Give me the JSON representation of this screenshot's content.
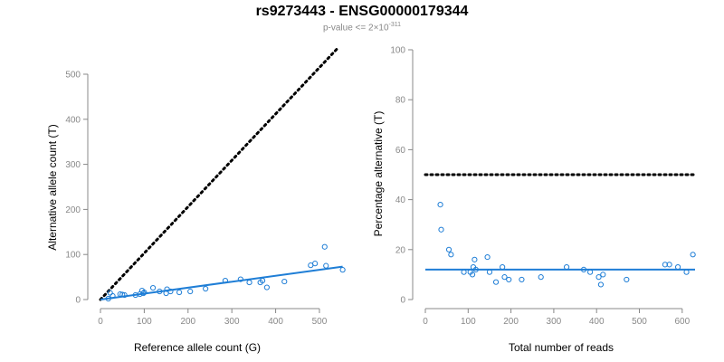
{
  "figure": {
    "title": "rs9273443 - ENSG00000179344",
    "subtitle_prefix": "p-value <= 2×10",
    "subtitle_exponent": "-311"
  },
  "colors": {
    "points": "#1f7ed6",
    "fit": "#1f7ed6",
    "reference": "#000000",
    "axis": "#888888"
  },
  "chart_data": [
    {
      "type": "scatter",
      "xlabel": "Reference allele count (G)",
      "ylabel": "Alternative allele count (T)",
      "xlim": [
        0,
        560
      ],
      "ylim": [
        0,
        500
      ],
      "xticks": [
        0,
        100,
        200,
        300,
        400,
        500
      ],
      "yticks": [
        0,
        100,
        200,
        300,
        400,
        500
      ],
      "points": [
        [
          18,
          2
        ],
        [
          22,
          15
        ],
        [
          28,
          8
        ],
        [
          45,
          12
        ],
        [
          50,
          11
        ],
        [
          55,
          10
        ],
        [
          80,
          10
        ],
        [
          90,
          12
        ],
        [
          95,
          20
        ],
        [
          98,
          14
        ],
        [
          100,
          16
        ],
        [
          120,
          26
        ],
        [
          135,
          18
        ],
        [
          150,
          14
        ],
        [
          152,
          23
        ],
        [
          160,
          18
        ],
        [
          180,
          16
        ],
        [
          205,
          18
        ],
        [
          240,
          24
        ],
        [
          285,
          42
        ],
        [
          320,
          45
        ],
        [
          340,
          38
        ],
        [
          365,
          38
        ],
        [
          370,
          42
        ],
        [
          380,
          27
        ],
        [
          420,
          40
        ],
        [
          480,
          76
        ],
        [
          490,
          80
        ],
        [
          512,
          117
        ],
        [
          515,
          75
        ],
        [
          553,
          66
        ]
      ],
      "reference_line": {
        "style": "dotted",
        "from": [
          0,
          0
        ],
        "to": [
          540,
          556
        ]
      },
      "fit_line": {
        "style": "solid",
        "from": [
          0,
          0
        ],
        "to": [
          553,
          73
        ]
      }
    },
    {
      "type": "scatter",
      "xlabel": "Total number of reads",
      "ylabel": "Percentage alternative (T)",
      "xlim": [
        0,
        630
      ],
      "ylim": [
        0,
        100
      ],
      "xticks": [
        0,
        100,
        200,
        300,
        400,
        500,
        600
      ],
      "yticks": [
        0,
        20,
        40,
        60,
        80,
        100
      ],
      "points": [
        [
          35,
          38
        ],
        [
          37,
          28
        ],
        [
          55,
          20
        ],
        [
          60,
          18
        ],
        [
          90,
          11
        ],
        [
          105,
          11
        ],
        [
          110,
          10
        ],
        [
          112,
          13
        ],
        [
          115,
          16
        ],
        [
          118,
          12
        ],
        [
          145,
          17
        ],
        [
          150,
          11
        ],
        [
          165,
          7
        ],
        [
          180,
          13
        ],
        [
          185,
          9
        ],
        [
          195,
          8
        ],
        [
          225,
          8
        ],
        [
          270,
          9
        ],
        [
          330,
          13
        ],
        [
          370,
          12
        ],
        [
          385,
          11
        ],
        [
          405,
          9
        ],
        [
          410,
          6
        ],
        [
          415,
          10
        ],
        [
          470,
          8
        ],
        [
          560,
          14
        ],
        [
          570,
          14
        ],
        [
          590,
          13
        ],
        [
          610,
          11
        ],
        [
          625,
          18
        ]
      ],
      "reference_line": {
        "style": "dotted",
        "y": 50,
        "xrange": [
          0,
          630
        ]
      },
      "fit_line": {
        "style": "solid",
        "y": 12,
        "xrange": [
          0,
          630
        ]
      }
    }
  ]
}
